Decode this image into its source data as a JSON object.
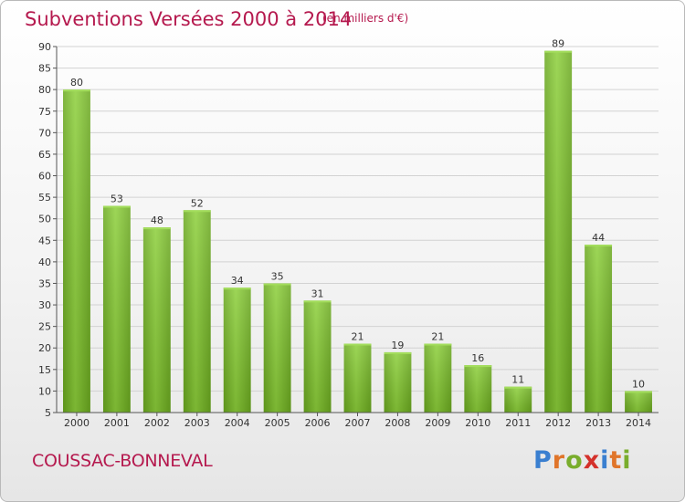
{
  "header": {
    "title": "Subventions Versées 2000 à 2014",
    "subtitle": "(en milliers d'€)"
  },
  "footer": {
    "commune": "COUSSAC-BONNEVAL",
    "logo_text": "Proxiti",
    "logo_colors": [
      "#3a7fd0",
      "#e0752a",
      "#79ad2c",
      "#d4312b"
    ]
  },
  "chart_data": {
    "type": "bar",
    "title": "Subventions Versées 2000 à 2014",
    "subtitle": "(en milliers d'€)",
    "categories": [
      "2000",
      "2001",
      "2002",
      "2003",
      "2004",
      "2005",
      "2006",
      "2007",
      "2008",
      "2009",
      "2010",
      "2011",
      "2012",
      "2013",
      "2014"
    ],
    "values": [
      80,
      53,
      48,
      52,
      34,
      35,
      31,
      21,
      19,
      21,
      16,
      11,
      89,
      44,
      10
    ],
    "ylim": [
      5,
      90
    ],
    "yticks": [
      5,
      10,
      15,
      20,
      25,
      30,
      35,
      40,
      45,
      50,
      55,
      60,
      65,
      70,
      75,
      80,
      85,
      90
    ],
    "grid": true,
    "bar_color": "#7ec12e",
    "xlabel": "",
    "ylabel": ""
  }
}
